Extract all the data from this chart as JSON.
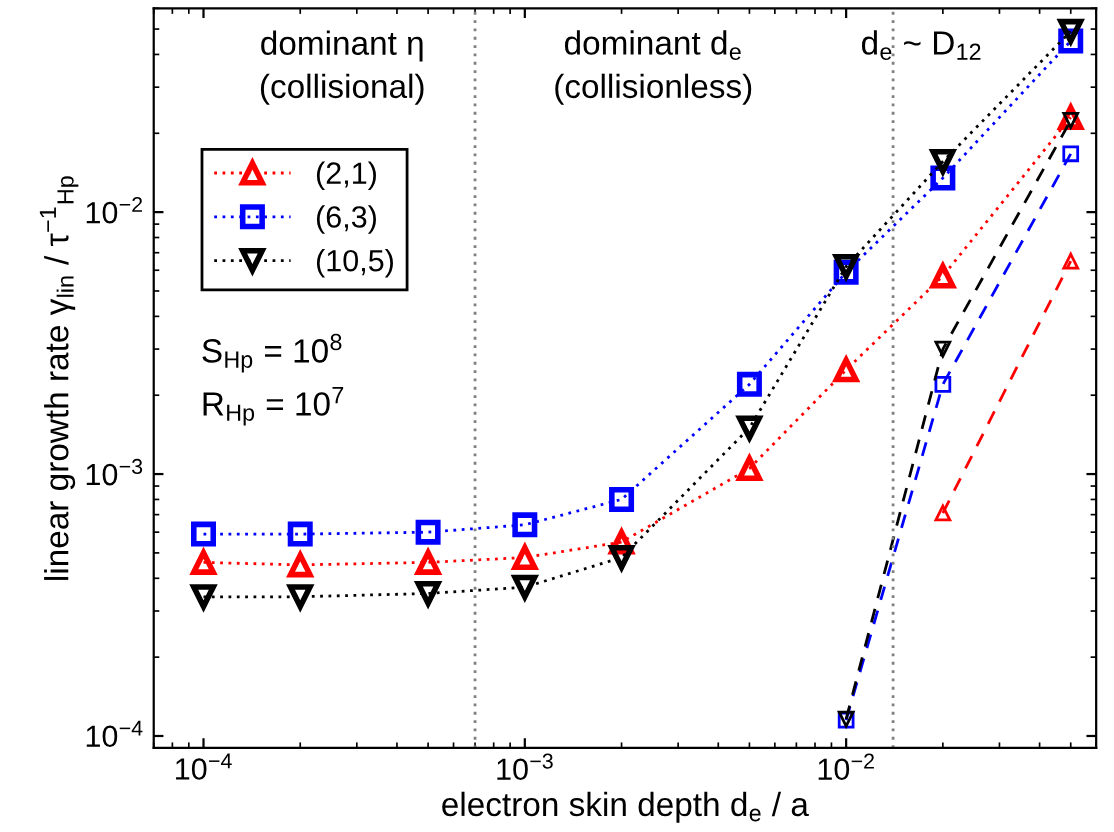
{
  "chart_data": {
    "type": "line",
    "xlabel": "electron skin depth d$_{e}$ / a",
    "ylabel": "linear growth rate γ$_{lin}$ / τ$^{−1}$$_{Hp}$",
    "log": "xy",
    "xlim": [
      7e-05,
      0.06
    ],
    "ylim": [
      9e-05,
      0.06
    ],
    "xticks": [
      {
        "value": 0.0001,
        "label": "10$^{−4}$"
      },
      {
        "value": 0.001,
        "label": "10$^{−3}$"
      },
      {
        "value": 0.01,
        "label": "10$^{−2}$"
      }
    ],
    "yticks": [
      {
        "value": 0.0001,
        "label": "10$^{−4}$"
      },
      {
        "value": 0.001,
        "label": "10$^{−3}$"
      },
      {
        "value": 0.01,
        "label": "10$^{−2}$"
      }
    ],
    "grid": false,
    "legend": "top left",
    "series": [
      {
        "name": "(2,1)",
        "color": "#ff0000",
        "marker": "triangle",
        "line_style": "dotted",
        "x": [
          0.0001,
          0.0002,
          0.0005,
          0.001,
          0.002,
          0.005,
          0.01,
          0.02,
          0.05
        ],
        "values": [
          0.00046,
          0.00045,
          0.00046,
          0.00048,
          0.00055,
          0.00105,
          0.0025,
          0.0057,
          0.023
        ]
      },
      {
        "name": "(6,3)",
        "color": "#0000ff",
        "marker": "square",
        "line_style": "dotted",
        "x": [
          0.0001,
          0.0002,
          0.0005,
          0.001,
          0.002,
          0.005,
          0.01,
          0.02,
          0.05
        ],
        "values": [
          0.00059,
          0.00059,
          0.0006,
          0.00064,
          0.0008,
          0.0022,
          0.0059,
          0.0135,
          0.045
        ]
      },
      {
        "name": "(10,5)",
        "color": "#000000",
        "marker": "triangle_down",
        "line_style": "dotted",
        "x": [
          0.0001,
          0.0002,
          0.0005,
          0.001,
          0.002,
          0.005,
          0.01,
          0.02,
          0.05
        ],
        "values": [
          0.00034,
          0.00034,
          0.00035,
          0.00037,
          0.00048,
          0.0015,
          0.0062,
          0.0156,
          0.049
        ]
      },
      {
        "color": "#ff0000",
        "marker": "triangle",
        "line_style": "dashed",
        "x": [
          0.02,
          0.05
        ],
        "values": [
          0.00071,
          0.0065
        ]
      },
      {
        "color": "#0000ff",
        "marker": "square",
        "line_style": "dashed",
        "x": [
          0.01,
          0.02,
          0.05
        ],
        "values": [
          0.000115,
          0.0022,
          0.0167
        ]
      },
      {
        "color": "#000000",
        "marker": "triangle_down",
        "line_style": "dashed",
        "x": [
          0.01,
          0.02,
          0.05
        ],
        "values": [
          0.000116,
          0.003,
          0.0224
        ]
      }
    ],
    "ref_lines": [
      {
        "axis": "x",
        "value": 0.0007,
        "color": "#808080",
        "line_style": "dotted"
      },
      {
        "axis": "x",
        "value": 0.014,
        "color": "#808080",
        "line_style": "dotted"
      }
    ],
    "annotations": [
      "dominant η\n(collisional)",
      "dominant d$_{e}$\n(collisionless)",
      "d$_{e}$ ~ D$_{12}$",
      "S$_{Hp}$ = 10$^{8}$\nR$_{Hp}$ = 10$^{7}$"
    ]
  }
}
